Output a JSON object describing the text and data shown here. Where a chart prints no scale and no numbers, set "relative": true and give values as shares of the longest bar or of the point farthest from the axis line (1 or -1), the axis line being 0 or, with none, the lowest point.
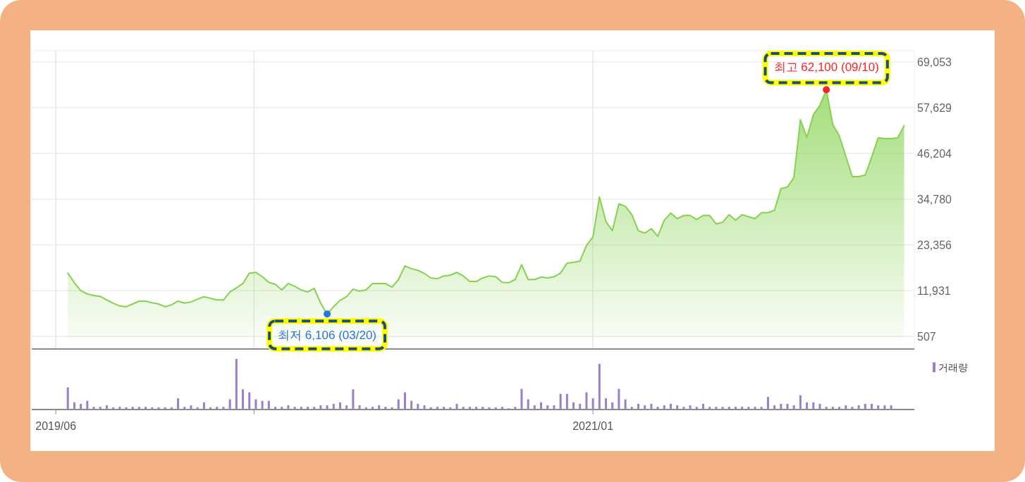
{
  "chart_data": [
    {
      "type": "area",
      "x": [
        "2019-06-14",
        "2019-06-21",
        "2019-06-28",
        "2019-07-05",
        "2019-07-12",
        "2019-07-19",
        "2019-07-26",
        "2019-08-02",
        "2019-08-09",
        "2019-08-16",
        "2019-08-23",
        "2019-08-30",
        "2019-09-06",
        "2019-09-13",
        "2019-09-20",
        "2019-09-27",
        "2019-10-04",
        "2019-10-11",
        "2019-10-18",
        "2019-10-25",
        "2019-11-01",
        "2019-11-08",
        "2019-11-15",
        "2019-11-22",
        "2019-11-29",
        "2019-12-06",
        "2019-12-13",
        "2019-12-20",
        "2019-12-27",
        "2020-01-03",
        "2020-01-10",
        "2020-01-17",
        "2020-01-24",
        "2020-01-31",
        "2020-02-07",
        "2020-02-14",
        "2020-02-21",
        "2020-02-28",
        "2020-03-06",
        "2020-03-13",
        "2020-03-20",
        "2020-03-27",
        "2020-04-03",
        "2020-04-10",
        "2020-04-17",
        "2020-04-24",
        "2020-05-01",
        "2020-05-08",
        "2020-05-15",
        "2020-05-22",
        "2020-05-29",
        "2020-06-05",
        "2020-06-12",
        "2020-06-19",
        "2020-06-26",
        "2020-07-03",
        "2020-07-10",
        "2020-07-17",
        "2020-07-24",
        "2020-07-31",
        "2020-08-07",
        "2020-08-14",
        "2020-08-21",
        "2020-08-28",
        "2020-09-04",
        "2020-09-11",
        "2020-09-18",
        "2020-09-25",
        "2020-10-02",
        "2020-10-09",
        "2020-10-16",
        "2020-10-23",
        "2020-10-30",
        "2020-11-06",
        "2020-11-13",
        "2020-11-20",
        "2020-11-27",
        "2020-12-04",
        "2020-12-11",
        "2020-12-18",
        "2020-12-25",
        "2021-01-01",
        "2021-01-08",
        "2021-01-15",
        "2021-01-22",
        "2021-01-29",
        "2021-02-05",
        "2021-02-12",
        "2021-02-19",
        "2021-02-26",
        "2021-03-05",
        "2021-03-12",
        "2021-03-19",
        "2021-03-26",
        "2021-04-02",
        "2021-04-09",
        "2021-04-16",
        "2021-04-23",
        "2021-04-30",
        "2021-05-07",
        "2021-05-14",
        "2021-05-21",
        "2021-05-28",
        "2021-06-04",
        "2021-06-11",
        "2021-06-18",
        "2021-06-25",
        "2021-07-02",
        "2021-07-09",
        "2021-07-16",
        "2021-07-23",
        "2021-07-30",
        "2021-08-06",
        "2021-08-13",
        "2021-08-20",
        "2021-08-27",
        "2021-09-03",
        "2021-09-10",
        "2021-09-17",
        "2021-09-24",
        "2021-10-01",
        "2021-10-08",
        "2021-10-15",
        "2021-10-22",
        "2021-10-29",
        "2021-11-05",
        "2021-11-12",
        "2021-11-19",
        "2021-11-26",
        "2021-12-03"
      ],
      "series": [
        {
          "color": "#86d24f",
          "values": [
            16300,
            13900,
            11900,
            11100,
            10700,
            10500,
            9600,
            8800,
            8100,
            7900,
            8600,
            9300,
            9300,
            8900,
            8600,
            7900,
            8400,
            9300,
            8800,
            9100,
            9800,
            10400,
            10000,
            9600,
            9600,
            11600,
            12600,
            13700,
            16300,
            16500,
            15400,
            14000,
            13500,
            12100,
            13700,
            13000,
            12100,
            11600,
            12500,
            8800,
            6106,
            7900,
            9500,
            10400,
            12300,
            11800,
            12100,
            13700,
            13700,
            13700,
            12800,
            14700,
            18100,
            17400,
            17000,
            16200,
            15100,
            14900,
            15600,
            15800,
            16500,
            15600,
            14200,
            14200,
            15100,
            15600,
            15400,
            14000,
            13900,
            14700,
            18400,
            14700,
            14700,
            15300,
            15100,
            15400,
            16300,
            18800,
            19000,
            19300,
            23200,
            25300,
            35300,
            29200,
            26900,
            33600,
            33000,
            30900,
            26900,
            26300,
            27400,
            25500,
            29500,
            31300,
            29900,
            30700,
            30700,
            29700,
            30700,
            30700,
            28600,
            29000,
            30900,
            29500,
            30900,
            30400,
            29900,
            31400,
            31400,
            32000,
            37400,
            37800,
            40200,
            54600,
            50200,
            55900,
            58200,
            62100,
            53400,
            50600,
            45500,
            40400,
            40400,
            40800,
            45300,
            50100,
            49900,
            49900,
            50100,
            53100
          ]
        }
      ],
      "xlim": [
        "2019-05-06",
        "2021-12-14"
      ],
      "xticks": [
        {
          "value": "2019-06",
          "label": null
        },
        {
          "value": "2020-01",
          "label": null
        },
        {
          "value": "2021-01",
          "label": null
        }
      ],
      "ylim": [
        -2480,
        71870
      ],
      "yticks": [
        507,
        {
          "value": 11931,
          "label": "11,931"
        },
        {
          "value": 23356,
          "label": "23,356"
        },
        {
          "value": 34780,
          "label": "34,780"
        },
        {
          "value": 46204,
          "label": "46,204"
        },
        {
          "value": 57629,
          "label": "57,629"
        },
        {
          "value": 69053,
          "label": "69,053"
        }
      ],
      "tick_labels": "y",
      "grid": true,
      "annotations": [
        {
          "text": "최저 6,106 (03/20)",
          "x": "2020-03-20",
          "y": 6106
        },
        {
          "text": "최고 62,100 (09/10)",
          "x": "2021-09-10",
          "y": 62100
        }
      ]
    },
    {
      "type": "bar",
      "x": [
        "2019-06-14",
        "2019-06-21",
        "2019-06-28",
        "2019-07-05",
        "2019-07-12",
        "2019-07-19",
        "2019-07-26",
        "2019-08-02",
        "2019-08-09",
        "2019-08-16",
        "2019-08-23",
        "2019-08-30",
        "2019-09-06",
        "2019-09-13",
        "2019-09-20",
        "2019-09-27",
        "2019-10-04",
        "2019-10-11",
        "2019-10-18",
        "2019-10-25",
        "2019-11-01",
        "2019-11-08",
        "2019-11-15",
        "2019-11-22",
        "2019-11-29",
        "2019-12-06",
        "2019-12-13",
        "2019-12-20",
        "2019-12-27",
        "2020-01-03",
        "2020-01-10",
        "2020-01-17",
        "2020-01-24",
        "2020-01-31",
        "2020-02-07",
        "2020-02-14",
        "2020-02-21",
        "2020-02-28",
        "2020-03-06",
        "2020-03-13",
        "2020-03-20",
        "2020-03-27",
        "2020-04-03",
        "2020-04-10",
        "2020-04-17",
        "2020-04-24",
        "2020-05-01",
        "2020-05-08",
        "2020-05-15",
        "2020-05-22",
        "2020-05-29",
        "2020-06-05",
        "2020-06-12",
        "2020-06-19",
        "2020-06-26",
        "2020-07-03",
        "2020-07-10",
        "2020-07-17",
        "2020-07-24",
        "2020-07-31",
        "2020-08-07",
        "2020-08-14",
        "2020-08-21",
        "2020-08-28",
        "2020-09-04",
        "2020-09-11",
        "2020-09-18",
        "2020-09-25",
        "2020-10-02",
        "2020-10-09",
        "2020-10-16",
        "2020-10-23",
        "2020-10-30",
        "2020-11-06",
        "2020-11-13",
        "2020-11-20",
        "2020-11-27",
        "2020-12-04",
        "2020-12-11",
        "2020-12-18",
        "2020-12-25",
        "2021-01-01",
        "2021-01-08",
        "2021-01-15",
        "2021-01-22",
        "2021-01-29",
        "2021-02-05",
        "2021-02-12",
        "2021-02-19",
        "2021-02-26",
        "2021-03-05",
        "2021-03-12",
        "2021-03-19",
        "2021-03-26",
        "2021-04-02",
        "2021-04-09",
        "2021-04-16",
        "2021-04-23",
        "2021-04-30",
        "2021-05-07",
        "2021-05-14",
        "2021-05-21",
        "2021-05-28",
        "2021-06-04",
        "2021-06-11",
        "2021-06-18",
        "2021-06-25",
        "2021-07-02",
        "2021-07-09",
        "2021-07-16",
        "2021-07-23",
        "2021-07-30",
        "2021-08-06",
        "2021-08-13",
        "2021-08-20",
        "2021-08-27",
        "2021-09-03",
        "2021-09-10",
        "2021-09-17",
        "2021-09-24",
        "2021-10-01",
        "2021-10-08",
        "2021-10-15",
        "2021-10-22",
        "2021-10-29",
        "2021-11-05",
        "2021-11-12",
        "2021-11-19"
      ],
      "relative": true,
      "series": [
        {
          "name": "거래량",
          "color": "#9a7fcf",
          "values": [
            0.43,
            0.13,
            0.1,
            0.16,
            0.04,
            0.04,
            0.07,
            0.03,
            0.04,
            0.03,
            0.04,
            0.04,
            0.04,
            0.03,
            0.03,
            0.03,
            0.03,
            0.21,
            0.04,
            0.07,
            0.03,
            0.13,
            0.03,
            0.04,
            0.04,
            0.19,
            1,
            0.39,
            0.33,
            0.19,
            0.16,
            0.16,
            0.04,
            0.04,
            0.07,
            0.04,
            0.04,
            0.04,
            0.04,
            0.07,
            0.07,
            0.1,
            0.13,
            0.07,
            0.39,
            0.07,
            0.03,
            0.04,
            0.07,
            0.04,
            0.03,
            0.19,
            0.33,
            0.16,
            0.1,
            0.07,
            0.03,
            0.04,
            0.04,
            0.03,
            0.1,
            0.04,
            0.04,
            0.04,
            0.04,
            0.03,
            0.03,
            0.04,
            0.01,
            0.04,
            0.4,
            0.19,
            0.07,
            0.13,
            0.07,
            0.07,
            0.3,
            0.3,
            0.13,
            0.1,
            0.33,
            0.21,
            0.9,
            0.21,
            0.13,
            0.4,
            0.19,
            0.04,
            0.1,
            0.07,
            0.1,
            0.04,
            0.07,
            0.1,
            0.07,
            0.04,
            0.07,
            0.04,
            0.1,
            0.04,
            0.04,
            0.04,
            0.04,
            0.04,
            0.04,
            0.04,
            0.04,
            0.04,
            0.24,
            0.07,
            0.1,
            0.1,
            0.07,
            0.27,
            0.13,
            0.13,
            0.1,
            0.04,
            0.04,
            0.04,
            0.07,
            0.04,
            0.07,
            0.1,
            0.1,
            0.07,
            0.07,
            0.07
          ]
        }
      ],
      "xlim": [
        "2019-05-06",
        "2021-12-14"
      ],
      "xticks": [
        {
          "value": "2019-06",
          "label": "2019/06"
        },
        {
          "value": "2020-01",
          "label": null
        },
        {
          "value": "2021-01",
          "label": "2021/01"
        }
      ],
      "tick_labels": "x",
      "legend": "top right"
    }
  ]
}
